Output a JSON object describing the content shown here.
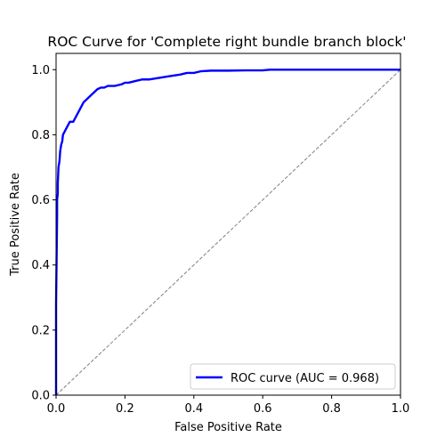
{
  "chart_data": {
    "type": "line",
    "title": "ROC Curve for 'Complete right bundle branch block'",
    "xlabel": "False Positive Rate",
    "ylabel": "True Positive Rate",
    "xlim": [
      0.0,
      1.0
    ],
    "ylim": [
      0.0,
      1.05
    ],
    "x_ticks": [
      0.0,
      0.2,
      0.4,
      0.6,
      0.8,
      1.0
    ],
    "y_ticks": [
      0.0,
      0.2,
      0.4,
      0.6,
      0.8,
      1.0
    ],
    "x_tick_labels": [
      "0.0",
      "0.2",
      "0.4",
      "0.6",
      "0.8",
      "1.0"
    ],
    "y_tick_labels": [
      "0.0",
      "0.2",
      "0.4",
      "0.6",
      "0.8",
      "1.0"
    ],
    "grid": false,
    "legend_placement": "lower-right",
    "series": [
      {
        "name": "ROC curve (AUC = 0.968)",
        "color": "#0000ff",
        "style": "solid",
        "x": [
          0.0,
          0.0,
          0.003,
          0.003,
          0.005,
          0.005,
          0.007,
          0.01,
          0.012,
          0.015,
          0.018,
          0.02,
          0.025,
          0.03,
          0.035,
          0.04,
          0.05,
          0.06,
          0.07,
          0.08,
          0.09,
          0.1,
          0.11,
          0.12,
          0.13,
          0.14,
          0.15,
          0.17,
          0.19,
          0.2,
          0.21,
          0.23,
          0.25,
          0.27,
          0.3,
          0.33,
          0.36,
          0.38,
          0.4,
          0.42,
          0.45,
          0.5,
          0.55,
          0.6,
          0.62,
          0.7,
          0.8,
          0.9,
          1.0
        ],
        "y": [
          0.0,
          0.28,
          0.55,
          0.6,
          0.62,
          0.65,
          0.7,
          0.72,
          0.75,
          0.77,
          0.78,
          0.8,
          0.81,
          0.82,
          0.83,
          0.84,
          0.84,
          0.86,
          0.88,
          0.9,
          0.91,
          0.92,
          0.93,
          0.94,
          0.945,
          0.945,
          0.95,
          0.95,
          0.955,
          0.96,
          0.96,
          0.965,
          0.97,
          0.97,
          0.975,
          0.98,
          0.985,
          0.99,
          0.99,
          0.995,
          0.997,
          0.997,
          0.998,
          0.998,
          1.0,
          1.0,
          1.0,
          1.0,
          1.0
        ]
      },
      {
        "name": "",
        "color": "#808080",
        "style": "dashed",
        "x": [
          0.0,
          1.0
        ],
        "y": [
          0.0,
          1.0
        ]
      }
    ]
  }
}
